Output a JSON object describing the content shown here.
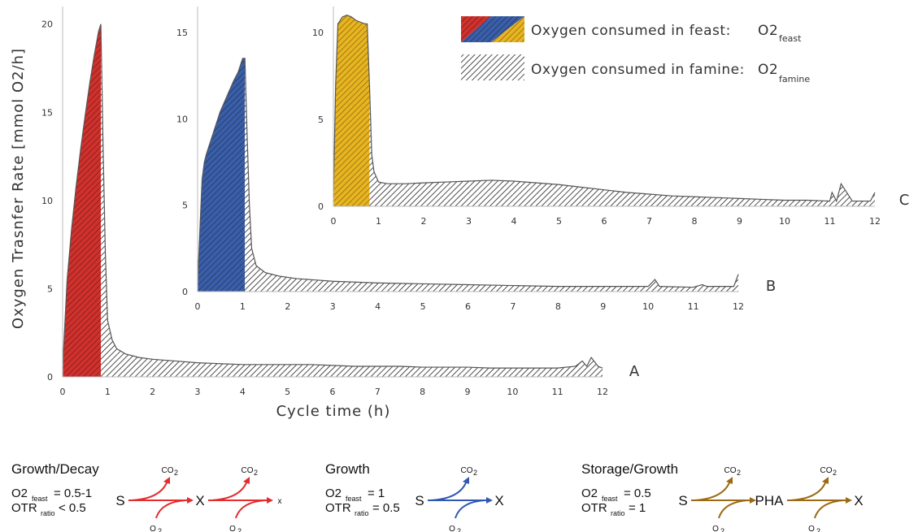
{
  "chart_data": {
    "type": "area",
    "ylabel": "Oxygen Trasnfer Rate [mmol O2/h]",
    "xlabel": "Cycle time (h)",
    "legend": {
      "placement": "top-right",
      "feast": {
        "label": "Oxygen consumed in feast:",
        "symbol": "O2",
        "subscript": "feast",
        "icon": "diagonal-split-red-blue-yellow-hatched"
      },
      "famine": {
        "label": "Oxygen consumed in famine:",
        "symbol": "O2",
        "subscript": "famine",
        "icon": "black-hatched"
      }
    },
    "panels": [
      {
        "id": "A",
        "feast_color": "#d0312d",
        "feast_end": 0.85,
        "xlim": [
          0,
          12
        ],
        "ylim": [
          0,
          21
        ],
        "xticks": [
          "0",
          "1",
          "2",
          "3",
          "4",
          "5",
          "6",
          "7",
          "8",
          "9",
          "10",
          "11",
          "12"
        ],
        "yticks": [
          "0",
          "5",
          "10",
          "15",
          "20"
        ],
        "ytick_values": [
          0,
          5,
          10,
          15,
          20
        ],
        "x": [
          0,
          0.1,
          0.2,
          0.3,
          0.4,
          0.5,
          0.6,
          0.7,
          0.8,
          0.85,
          0.9,
          0.95,
          1.0,
          1.1,
          1.2,
          1.4,
          1.7,
          2,
          2.5,
          3,
          3.5,
          4,
          4.5,
          5,
          5.5,
          6,
          6.5,
          7,
          7.5,
          8,
          8.5,
          9,
          9.5,
          10,
          10.5,
          11,
          11.4,
          11.55,
          11.65,
          11.75,
          11.9,
          12
        ],
        "y": [
          0.5,
          5.5,
          8.4,
          10.8,
          12.9,
          14.8,
          16.6,
          18.2,
          19.6,
          20.0,
          13,
          7,
          3.2,
          2.1,
          1.6,
          1.3,
          1.1,
          1.0,
          0.9,
          0.8,
          0.75,
          0.7,
          0.7,
          0.7,
          0.7,
          0.65,
          0.6,
          0.6,
          0.6,
          0.55,
          0.55,
          0.55,
          0.5,
          0.5,
          0.5,
          0.5,
          0.6,
          0.9,
          0.6,
          1.1,
          0.6,
          0.5
        ]
      },
      {
        "id": "B",
        "feast_color": "#3a5ea8",
        "feast_end": 1.05,
        "xlim": [
          0,
          12
        ],
        "ylim": [
          0,
          16.5
        ],
        "xticks": [
          "0",
          "1",
          "2",
          "3",
          "4",
          "5",
          "6",
          "7",
          "8",
          "9",
          "10",
          "11",
          "12"
        ],
        "yticks": [
          "0",
          "5",
          "10",
          "15"
        ],
        "ytick_values": [
          0,
          5,
          10,
          15
        ],
        "x": [
          0,
          0.05,
          0.1,
          0.15,
          0.2,
          0.3,
          0.4,
          0.5,
          0.6,
          0.7,
          0.8,
          0.9,
          1.0,
          1.05,
          1.1,
          1.15,
          1.2,
          1.3,
          1.5,
          1.8,
          2.2,
          3,
          4,
          5,
          6,
          7,
          8,
          9,
          10,
          10.15,
          10.25,
          11,
          11.2,
          11.3,
          11.5,
          11.9,
          12
        ],
        "y": [
          0.5,
          3.5,
          6.5,
          7.5,
          8,
          8.8,
          9.6,
          10.4,
          11,
          11.6,
          12.2,
          12.7,
          13.5,
          13.5,
          9,
          5,
          2.5,
          1.5,
          1.1,
          0.9,
          0.75,
          0.6,
          0.5,
          0.45,
          0.4,
          0.35,
          0.3,
          0.3,
          0.3,
          0.7,
          0.3,
          0.25,
          0.4,
          0.3,
          0.3,
          0.3,
          1.0
        ]
      },
      {
        "id": "C",
        "feast_color": "#e8b420",
        "feast_end": 0.8,
        "xlim": [
          0,
          12
        ],
        "ylim": [
          0,
          11.5
        ],
        "xticks": [
          "0",
          "1",
          "2",
          "3",
          "4",
          "5",
          "6",
          "7",
          "8",
          "9",
          "10",
          "11",
          "12"
        ],
        "yticks": [
          "0",
          "5",
          "10"
        ],
        "ytick_values": [
          0,
          5,
          10
        ],
        "x": [
          0,
          0.05,
          0.1,
          0.2,
          0.3,
          0.4,
          0.5,
          0.6,
          0.7,
          0.75,
          0.8,
          0.85,
          0.9,
          1.0,
          1.2,
          1.6,
          2,
          2.5,
          3,
          3.5,
          4,
          4.5,
          5,
          5.5,
          6,
          6.5,
          7,
          7.5,
          8,
          8.5,
          9,
          9.5,
          10,
          10.5,
          11,
          11.05,
          11.15,
          11.25,
          11.5,
          11.9,
          12
        ],
        "y": [
          0.5,
          7,
          10.5,
          10.9,
          11.0,
          10.9,
          10.7,
          10.6,
          10.5,
          10.5,
          7,
          3,
          2,
          1.4,
          1.3,
          1.3,
          1.35,
          1.4,
          1.45,
          1.5,
          1.45,
          1.35,
          1.25,
          1.1,
          0.95,
          0.8,
          0.7,
          0.6,
          0.55,
          0.5,
          0.45,
          0.4,
          0.35,
          0.35,
          0.3,
          0.8,
          0.3,
          1.3,
          0.3,
          0.3,
          0.8
        ]
      }
    ]
  },
  "schemes": [
    {
      "title": "Growth/Decay",
      "line1": {
        "symbol": "O2",
        "sub": "feast",
        "value": "= 0.5-1"
      },
      "line2": {
        "symbol": "OTR",
        "sub": "ratio",
        "value": "< 0.5"
      },
      "color": "#e52b2b",
      "nodes": [
        "S",
        "X",
        "x"
      ],
      "co2": "CO",
      "co2_sub": "2",
      "o2": "O",
      "o2_sub": "2"
    },
    {
      "title": "Growth",
      "line1": {
        "symbol": "O2",
        "sub": "feast",
        "value": "= 1"
      },
      "line2": {
        "symbol": "OTR",
        "sub": "ratio",
        "value": "= 0.5"
      },
      "color": "#2f57b3",
      "nodes": [
        "S",
        "X"
      ],
      "co2": "CO",
      "co2_sub": "2",
      "o2": "O",
      "o2_sub": "2"
    },
    {
      "title": "Storage/Growth",
      "line1": {
        "symbol": "O2",
        "sub": "feast",
        "value": "= 0.5"
      },
      "line2": {
        "symbol": "OTR",
        "sub": "ratio",
        "value": "= 1"
      },
      "color": "#9b6a12",
      "nodes": [
        "S",
        "PHA",
        "X"
      ],
      "co2": "CO",
      "co2_sub": "2",
      "o2": "O",
      "o2_sub": "2"
    }
  ]
}
